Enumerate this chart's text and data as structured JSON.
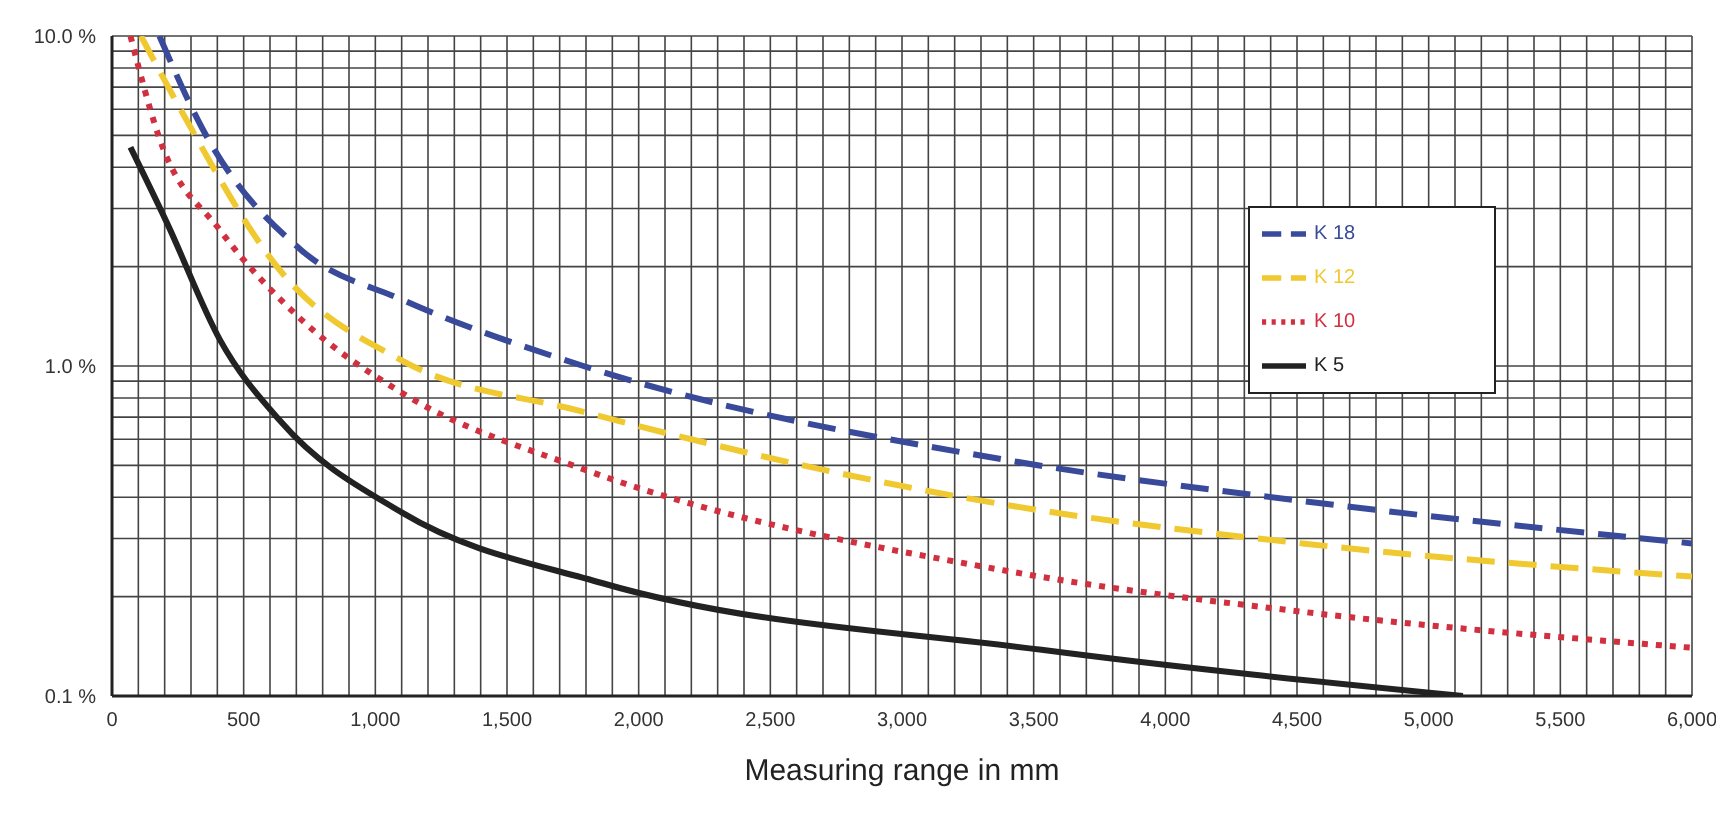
{
  "chart_data": {
    "type": "line",
    "xlabel": "Measuring range in mm",
    "log": "y",
    "grid": true,
    "legend": "top right",
    "marker": "none",
    "xlim": [
      0,
      6000
    ],
    "ylim": [
      0.1,
      10
    ],
    "xticks": [
      0,
      {
        "value": 100,
        "label": null
      },
      {
        "value": 200,
        "label": null
      },
      {
        "value": 300,
        "label": null
      },
      {
        "value": 400,
        "label": null
      },
      500,
      {
        "value": 600,
        "label": null
      },
      {
        "value": 700,
        "label": null
      },
      {
        "value": 800,
        "label": null
      },
      {
        "value": 900,
        "label": null
      },
      {
        "value": 1000,
        "label": "1,000"
      },
      {
        "value": 1100,
        "label": null
      },
      {
        "value": 1200,
        "label": null
      },
      {
        "value": 1300,
        "label": null
      },
      {
        "value": 1400,
        "label": null
      },
      {
        "value": 1500,
        "label": "1,500"
      },
      {
        "value": 1600,
        "label": null
      },
      {
        "value": 1700,
        "label": null
      },
      {
        "value": 1800,
        "label": null
      },
      {
        "value": 1900,
        "label": null
      },
      {
        "value": 2000,
        "label": "2,000"
      },
      {
        "value": 2100,
        "label": null
      },
      {
        "value": 2200,
        "label": null
      },
      {
        "value": 2300,
        "label": null
      },
      {
        "value": 2400,
        "label": null
      },
      {
        "value": 2500,
        "label": "2,500"
      },
      {
        "value": 2600,
        "label": null
      },
      {
        "value": 2700,
        "label": null
      },
      {
        "value": 2800,
        "label": null
      },
      {
        "value": 2900,
        "label": null
      },
      {
        "value": 3000,
        "label": "3,000"
      },
      {
        "value": 3100,
        "label": null
      },
      {
        "value": 3200,
        "label": null
      },
      {
        "value": 3300,
        "label": null
      },
      {
        "value": 3400,
        "label": null
      },
      {
        "value": 3500,
        "label": "3,500"
      },
      {
        "value": 3600,
        "label": null
      },
      {
        "value": 3700,
        "label": null
      },
      {
        "value": 3800,
        "label": null
      },
      {
        "value": 3900,
        "label": null
      },
      {
        "value": 4000,
        "label": "4,000"
      },
      {
        "value": 4100,
        "label": null
      },
      {
        "value": 4200,
        "label": null
      },
      {
        "value": 4300,
        "label": null
      },
      {
        "value": 4400,
        "label": null
      },
      {
        "value": 4500,
        "label": "4,500"
      },
      {
        "value": 4600,
        "label": null
      },
      {
        "value": 4700,
        "label": null
      },
      {
        "value": 4800,
        "label": null
      },
      {
        "value": 4900,
        "label": null
      },
      {
        "value": 5000,
        "label": "5,000"
      },
      {
        "value": 5100,
        "label": null
      },
      {
        "value": 5200,
        "label": null
      },
      {
        "value": 5300,
        "label": null
      },
      {
        "value": 5400,
        "label": null
      },
      {
        "value": 5500,
        "label": "5,500"
      },
      {
        "value": 5600,
        "label": null
      },
      {
        "value": 5700,
        "label": null
      },
      {
        "value": 5800,
        "label": null
      },
      {
        "value": 5900,
        "label": null
      },
      {
        "value": 6000,
        "label": "6,000"
      }
    ],
    "yticks": [
      {
        "value": 0.1,
        "label": "0.1 %"
      },
      {
        "value": 0.2,
        "label": null
      },
      {
        "value": 0.3,
        "label": null
      },
      {
        "value": 0.4,
        "label": null
      },
      {
        "value": 0.5,
        "label": null
      },
      {
        "value": 0.6,
        "label": null
      },
      {
        "value": 0.7,
        "label": null
      },
      {
        "value": 0.8,
        "label": null
      },
      {
        "value": 0.9,
        "label": null
      },
      {
        "value": 1,
        "label": "1.0 %"
      },
      {
        "value": 2,
        "label": null
      },
      {
        "value": 3,
        "label": null
      },
      {
        "value": 4,
        "label": null
      },
      {
        "value": 5,
        "label": null
      },
      {
        "value": 6,
        "label": null
      },
      {
        "value": 7,
        "label": null
      },
      {
        "value": 8,
        "label": null
      },
      {
        "value": 9,
        "label": null
      },
      {
        "value": 10,
        "label": "10.0 %"
      }
    ],
    "series": [
      {
        "name": "K 18",
        "color": "#3a4a9a",
        "line_style": "dashed",
        "x": [
          180,
          340,
          720,
          1100,
          1790,
          3390,
          4520,
          6000
        ],
        "values": [
          10,
          5.3,
          2.24,
          1.59,
          1.0,
          0.52,
          0.39,
          0.29
        ]
      },
      {
        "name": "K 12",
        "color": "#f0c830",
        "line_style": "dashed",
        "x": [
          110,
          260,
          640,
          1100,
          1780,
          3390,
          4520,
          6000
        ],
        "values": [
          10,
          6.0,
          1.94,
          1.04,
          0.73,
          0.38,
          0.29,
          0.23
        ]
      },
      {
        "name": "K 10",
        "color": "#d03040",
        "line_style": "dotted",
        "x": [
          70,
          180,
          410,
          720,
          1100,
          1780,
          3390,
          4520,
          6000
        ],
        "values": [
          10,
          4.9,
          2.58,
          1.38,
          0.83,
          0.49,
          0.24,
          0.18,
          0.14
        ]
      },
      {
        "name": "K 5",
        "color": "#222222",
        "line_style": "solid",
        "x": [
          70,
          210,
          410,
          640,
          1100,
          1860,
          3530,
          5130
        ],
        "values": [
          4.6,
          2.7,
          1.2,
          0.68,
          0.36,
          0.22,
          0.138,
          0.1
        ]
      }
    ]
  }
}
